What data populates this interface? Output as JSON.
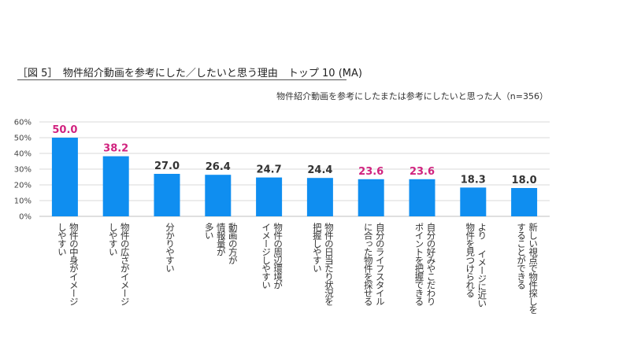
{
  "figure_title": "［図 5］　物件紹介動画を参考にした／したいと思う理由　トップ 10 (MA)",
  "subtitle": "物件紹介動画を参考にしたまたは参考にしたいと思った人（n=356）",
  "colors": {
    "bar": "#0f8ef0",
    "highlight": "#d1237f",
    "normal_label": "#333333",
    "grid": "#d9d9d9"
  },
  "chart_data": {
    "type": "bar",
    "title": "［図 5］　物件紹介動画を参考にした／したいと思う理由　トップ 10 (MA)",
    "xlabel": "",
    "ylabel": "",
    "ylim": [
      0,
      60
    ],
    "yticks": [
      "0%",
      "10%",
      "20%",
      "30%",
      "40%",
      "50%",
      "60%"
    ],
    "grid": true,
    "categories": [
      [
        "物件の中身がイメージ",
        "しやすい"
      ],
      [
        "物件の広さがイメージ",
        "しやすい"
      ],
      [
        "分かりやすい"
      ],
      [
        "動画の方が",
        "情報量が",
        "多い"
      ],
      [
        "物件の周辺環境が",
        "イメージしやすい"
      ],
      [
        "物件の日当たり状況を",
        "把握しやすい"
      ],
      [
        "自分のライフスタイル",
        "に合った物件を探せる"
      ],
      [
        "自分の好みやこだわり",
        "ポイントを把握できる"
      ],
      [
        "より イメージに近い",
        "物件を見つけられる"
      ],
      [
        "新しい視点で物件探しを",
        "することができる"
      ]
    ],
    "values": [
      50.0,
      38.2,
      27.0,
      26.4,
      24.7,
      24.4,
      23.6,
      23.6,
      18.3,
      18.0
    ],
    "value_labels": [
      "50.0",
      "38.2",
      "27.0",
      "26.4",
      "24.7",
      "24.4",
      "23.6",
      "23.6",
      "18.3",
      "18.0"
    ],
    "highlighted": [
      true,
      true,
      false,
      false,
      false,
      false,
      true,
      true,
      false,
      false
    ]
  }
}
